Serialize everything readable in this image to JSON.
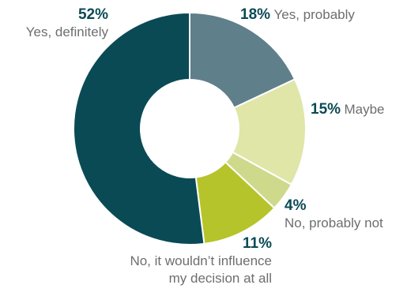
{
  "chart_data": {
    "type": "pie",
    "title": "",
    "slices": [
      {
        "label": "Yes, probably",
        "value": 18,
        "value_label": "18%",
        "color": "#5f7f8a"
      },
      {
        "label": "Maybe",
        "value": 15,
        "value_label": "15%",
        "color": "#dfe6a8"
      },
      {
        "label": "No, probably not",
        "value": 4,
        "value_label": "4%",
        "color": "#cfd98c"
      },
      {
        "label": "No, it wouldn't influence my decision at all",
        "label_lines": [
          "No, it wouldn’t influence",
          "my decision at all"
        ],
        "value": 11,
        "value_label": "11%",
        "color": "#b5c42b"
      },
      {
        "label": "Yes, definitely",
        "value": 52,
        "value_label": "52%",
        "color": "#0a4a55"
      }
    ]
  }
}
